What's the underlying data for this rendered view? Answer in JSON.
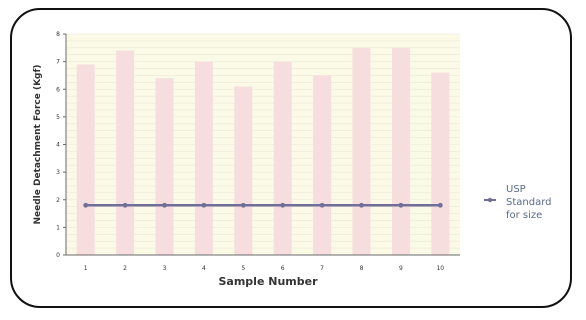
{
  "chart_data": {
    "type": "bar",
    "categories": [
      "1",
      "2",
      "3",
      "4",
      "5",
      "6",
      "7",
      "8",
      "9",
      "10"
    ],
    "series": [
      {
        "type": "bar",
        "values": [
          6.9,
          7.4,
          6.4,
          7.0,
          6.1,
          7.0,
          6.5,
          7.5,
          7.5,
          6.6
        ]
      },
      {
        "type": "line",
        "name": "USP Standard for size",
        "values": [
          1.8,
          1.8,
          1.8,
          1.8,
          1.8,
          1.8,
          1.8,
          1.8,
          1.8,
          1.8
        ]
      }
    ],
    "xlabel": "Sample Number",
    "ylabel": "Needle Detachment Force (Kgf)",
    "yticks": [
      "0",
      "1",
      "2",
      "3",
      "4",
      "5",
      "6",
      "7",
      "8"
    ],
    "ylim": [
      0,
      8
    ],
    "grid": true,
    "legend_position": "right",
    "colors": {
      "plot_background": "#fafae6",
      "bar": "#f7dede",
      "line": "#706f99"
    }
  }
}
